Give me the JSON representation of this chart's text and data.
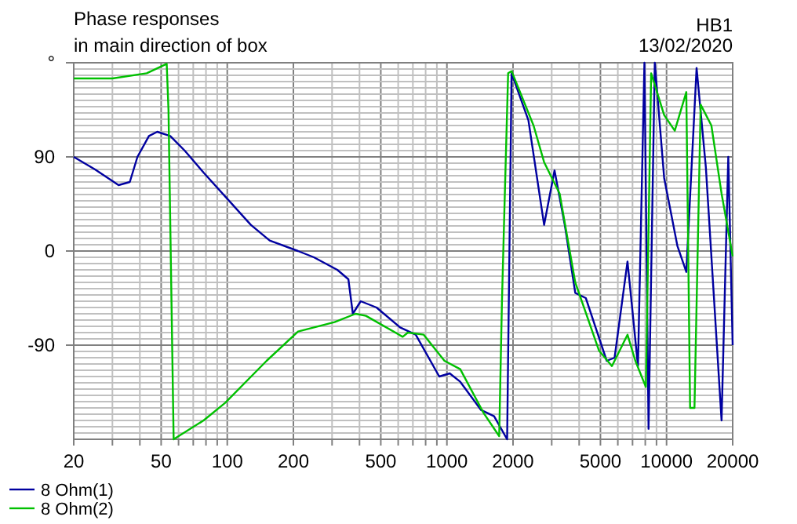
{
  "chart_data": {
    "type": "line",
    "title": "Phase responses",
    "subtitle": "in main direction of box",
    "annotations": [
      "HB1",
      "13/02/2020"
    ],
    "log": "x",
    "grid": true,
    "legend": "bottom left",
    "marker": "none",
    "line_style": "solid",
    "xlim": [
      20,
      20000
    ],
    "ylim": [
      -180,
      180
    ],
    "xticks": [
      20,
      {
        "value": 30,
        "label": null
      },
      {
        "value": 40,
        "label": null
      },
      50,
      {
        "value": 60,
        "label": null
      },
      {
        "value": 70,
        "label": null
      },
      {
        "value": 80,
        "label": null
      },
      {
        "value": 90,
        "label": null
      },
      100,
      200,
      {
        "value": 300,
        "label": null
      },
      {
        "value": 400,
        "label": null
      },
      500,
      {
        "value": 600,
        "label": null
      },
      {
        "value": 700,
        "label": null
      },
      {
        "value": 800,
        "label": null
      },
      {
        "value": 900,
        "label": null
      },
      1000,
      2000,
      {
        "value": 3000,
        "label": null
      },
      {
        "value": 4000,
        "label": null
      },
      5000,
      {
        "value": 6000,
        "label": null
      },
      {
        "value": 7000,
        "label": null
      },
      {
        "value": 8000,
        "label": null
      },
      {
        "value": 9000,
        "label": null
      },
      10000,
      20000
    ],
    "yticks": [
      {
        "value": 180,
        "label": "°"
      },
      {
        "value": 174,
        "label": null
      },
      {
        "value": 168,
        "label": null
      },
      {
        "value": 162,
        "label": null
      },
      {
        "value": 156,
        "label": null
      },
      {
        "value": 150,
        "label": null
      },
      {
        "value": 144,
        "label": null
      },
      {
        "value": 138,
        "label": null
      },
      {
        "value": 132,
        "label": null
      },
      {
        "value": 126,
        "label": null
      },
      {
        "value": 120,
        "label": null
      },
      {
        "value": 114,
        "label": null
      },
      {
        "value": 108,
        "label": null
      },
      {
        "value": 102,
        "label": null
      },
      {
        "value": 96,
        "label": null
      },
      90,
      {
        "value": 84,
        "label": null
      },
      {
        "value": 78,
        "label": null
      },
      {
        "value": 72,
        "label": null
      },
      {
        "value": 66,
        "label": null
      },
      {
        "value": 60,
        "label": null
      },
      {
        "value": 54,
        "label": null
      },
      {
        "value": 48,
        "label": null
      },
      {
        "value": 42,
        "label": null
      },
      {
        "value": 36,
        "label": null
      },
      {
        "value": 30,
        "label": null
      },
      {
        "value": 24,
        "label": null
      },
      {
        "value": 18,
        "label": null
      },
      {
        "value": 12,
        "label": null
      },
      {
        "value": 6,
        "label": null
      },
      0,
      {
        "value": -6,
        "label": null
      },
      {
        "value": -12,
        "label": null
      },
      {
        "value": -18,
        "label": null
      },
      {
        "value": -24,
        "label": null
      },
      {
        "value": -30,
        "label": null
      },
      {
        "value": -36,
        "label": null
      },
      {
        "value": -42,
        "label": null
      },
      {
        "value": -48,
        "label": null
      },
      {
        "value": -54,
        "label": null
      },
      {
        "value": -60,
        "label": null
      },
      {
        "value": -66,
        "label": null
      },
      {
        "value": -72,
        "label": null
      },
      {
        "value": -78,
        "label": null
      },
      {
        "value": -84,
        "label": null
      },
      -90,
      {
        "value": -96,
        "label": null
      },
      {
        "value": -102,
        "label": null
      },
      {
        "value": -108,
        "label": null
      },
      {
        "value": -114,
        "label": null
      },
      {
        "value": -120,
        "label": null
      },
      {
        "value": -126,
        "label": null
      },
      {
        "value": -132,
        "label": null
      },
      {
        "value": -138,
        "label": null
      },
      {
        "value": -144,
        "label": null
      },
      {
        "value": -150,
        "label": null
      },
      {
        "value": -156,
        "label": null
      },
      {
        "value": -162,
        "label": null
      },
      {
        "value": -168,
        "label": null
      },
      {
        "value": -174,
        "label": null
      },
      {
        "value": -180,
        "label": null
      }
    ],
    "series": [
      {
        "name": "8 Ohm(1)",
        "color": "#0000a0",
        "x": [
          20,
          25,
          32,
          36,
          39,
          44,
          48,
          55,
          64,
          78,
          100,
          128,
          156,
          210,
          248,
          317,
          356,
          373,
          405,
          478,
          612,
          721,
          923,
          1030,
          1150,
          1430,
          1640,
          1880,
          1970,
          2350,
          2770,
          3090,
          3440,
          3840,
          4290,
          5340,
          5800,
          6640,
          7410,
          7930,
          8280,
          8840,
          9750,
          11200,
          12300,
          13700,
          15100,
          17800,
          19100,
          20000
        ],
        "values": [
          90,
          78,
          63,
          66,
          90,
          110,
          114,
          110,
          96,
          75,
          50,
          25,
          10,
          0,
          -6,
          -18,
          -27,
          -60,
          -48,
          -54,
          -73,
          -80,
          -120,
          -117,
          -125,
          -152,
          -158,
          -180,
          170,
          125,
          25,
          77,
          25,
          -40,
          -45,
          -105,
          -102,
          -10,
          -110,
          180,
          -170,
          180,
          70,
          5,
          -20,
          175,
          80,
          -162,
          90,
          -90
        ]
      },
      {
        "name": "8 Ohm(2)",
        "color": "#00c000",
        "x": [
          20,
          30,
          43,
          53,
          54,
          57,
          78,
          98,
          151,
          210,
          308,
          384,
          428,
          629,
          664,
          784,
          975,
          1150,
          1470,
          1730,
          1780,
          1830,
          1900,
          1970,
          2480,
          2770,
          3260,
          3840,
          4920,
          5640,
          6640,
          7210,
          8050,
          8510,
          9750,
          10900,
          12300,
          12800,
          13400,
          14300,
          16000,
          17800,
          20000
        ],
        "values": [
          165,
          165,
          170,
          179,
          135,
          -180,
          -162,
          -145,
          -105,
          -77,
          -68,
          -60,
          -62,
          -82,
          -78,
          -80,
          -105,
          -113,
          -155,
          -177,
          -50,
          45,
          170,
          172,
          120,
          85,
          55,
          -30,
          -95,
          -110,
          -80,
          -105,
          -130,
          170,
          130,
          115,
          152,
          -150,
          -150,
          140,
          120,
          55,
          -5
        ]
      }
    ]
  }
}
